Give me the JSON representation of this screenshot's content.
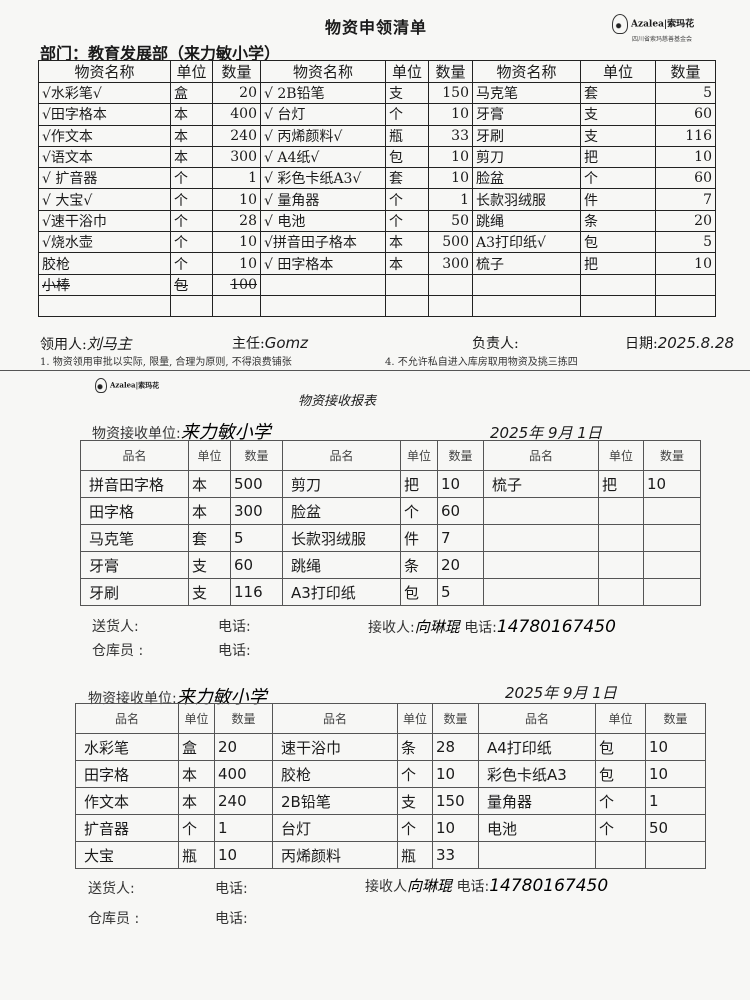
{
  "requisition": {
    "title": "物资申领清单",
    "logo": {
      "name": "Azalea|索玛花",
      "sub": "四川省索玛慈善基金会"
    },
    "department": "部门：教育发展部（来力敏小学）",
    "headers": [
      "物资名称",
      "单位",
      "数量",
      "物资名称",
      "单位",
      "数量",
      "物资名称",
      "单位",
      "数量"
    ],
    "rows": [
      [
        "√水彩笔√",
        "盒",
        "20",
        "√ 2B铅笔",
        "支",
        "150",
        "马克笔",
        "套",
        "5"
      ],
      [
        "√田字格本",
        "本",
        "400",
        "√ 台灯",
        "个",
        "10",
        "牙膏",
        "支",
        "60"
      ],
      [
        "√作文本",
        "本",
        "240",
        "√ 丙烯颜料√",
        "瓶",
        "33",
        "牙刷",
        "支",
        "116"
      ],
      [
        "√语文本",
        "本",
        "300",
        "√ A4纸√",
        "包",
        "10",
        "剪刀",
        "把",
        "10"
      ],
      [
        "√ 扩音器",
        "个",
        "1",
        "√ 彩色卡纸A3√",
        "套",
        "10",
        "脸盆",
        "个",
        "60"
      ],
      [
        "√ 大宝√",
        "个",
        "10",
        "√ 量角器",
        "个",
        "1",
        "长款羽绒服",
        "件",
        "7"
      ],
      [
        "√速干浴巾",
        "个",
        "28",
        "√ 电池",
        "个",
        "50",
        "跳绳",
        "条",
        "20"
      ],
      [
        "√烧水壶",
        "个",
        "10",
        "√拼音田子格本",
        "本",
        "500",
        "A3打印纸√",
        "包",
        "5"
      ],
      [
        "胶枪",
        "个",
        "10",
        "√ 田字格本",
        "本",
        "300",
        "梳子",
        "把",
        "10"
      ],
      [
        "小棒",
        "包",
        "100",
        "",
        "",
        "",
        "",
        "",
        ""
      ],
      [
        "",
        "",
        "",
        "",
        "",
        "",
        "",
        "",
        ""
      ]
    ],
    "applicant_label": "领用人:",
    "applicant_sig": "刘马主",
    "director_label": "主任:",
    "director_sig": "Gomz",
    "responsible_label": "负责人:",
    "date_label": "日期:",
    "date_value": "2025.8.28",
    "rule1": "1. 物资领用审批以实际, 限量, 合理为原则, 不得浪费铺张",
    "rule4": "4. 不允许私自进入库房取用物资及挑三拣四"
  },
  "receipts": [
    {
      "title": "物资接收报表",
      "unit_label": "物资接收单位:",
      "unit_value": "来力敏小学",
      "date": "2025年 9月 1日",
      "headers": [
        "品名",
        "单位",
        "数量",
        "品名",
        "单位",
        "数量",
        "品名",
        "单位",
        "数量"
      ],
      "rows": [
        [
          "拼音田字格",
          "本",
          "500",
          "剪刀",
          "把",
          "10",
          "梳子",
          "把",
          "10"
        ],
        [
          "田字格",
          "本",
          "300",
          "脸盆",
          "个",
          "60",
          "",
          "",
          ""
        ],
        [
          "马克笔",
          "套",
          "5",
          "长款羽绒服",
          "件",
          "7",
          "",
          "",
          ""
        ],
        [
          "牙膏",
          "支",
          "60",
          "跳绳",
          "条",
          "20",
          "",
          "",
          ""
        ],
        [
          "牙刷",
          "支",
          "116",
          "A3打印纸",
          "包",
          "5",
          "",
          "",
          ""
        ]
      ],
      "sender_label": "送货人:",
      "phone_label": "电话:",
      "receiver_label": "接收人:",
      "receiver_sig": "向琳琨",
      "receiver_phone": "14780167450",
      "keeper_label": "仓库员 :"
    },
    {
      "unit_label": "物资接收单位:",
      "unit_value": "来力敏小学",
      "date": "2025年 9月 1日",
      "headers": [
        "品名",
        "单位",
        "数量",
        "品名",
        "单位",
        "数量",
        "品名",
        "单位",
        "数量"
      ],
      "rows": [
        [
          "水彩笔",
          "盒",
          "20",
          "速干浴巾",
          "条",
          "28",
          "A4打印纸",
          "包",
          "10"
        ],
        [
          "田字格",
          "本",
          "400",
          "胶枪",
          "个",
          "10",
          "彩色卡纸A3",
          "包",
          "10"
        ],
        [
          "作文本",
          "本",
          "240",
          "2B铅笔",
          "支",
          "150",
          "量角器",
          "个",
          "1"
        ],
        [
          "扩音器",
          "个",
          "1",
          "台灯",
          "个",
          "10",
          "电池",
          "个",
          "50"
        ],
        [
          "大宝",
          "瓶",
          "10",
          "丙烯颜料",
          "瓶",
          "33",
          "",
          "",
          ""
        ]
      ],
      "sender_label": "送货人:",
      "phone_label": "电话:",
      "receiver_label": "接收人",
      "receiver_sig": "向琳琨",
      "receiver_phone": "14780167450",
      "keeper_label": "仓库员 :"
    }
  ]
}
